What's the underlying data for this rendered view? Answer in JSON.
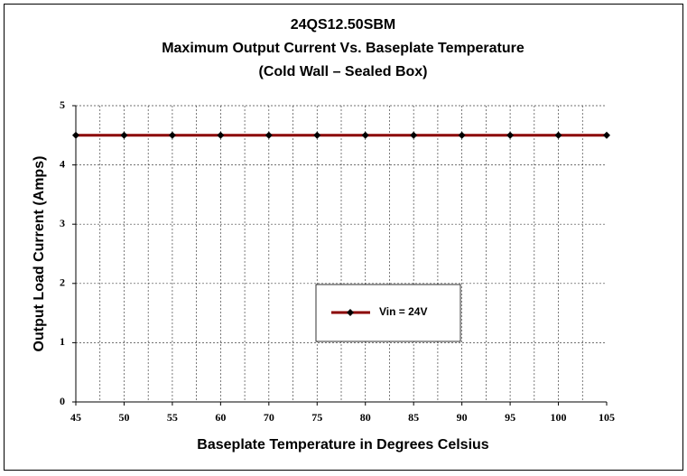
{
  "chart_data": {
    "type": "line",
    "title": [
      "24QS12.50SBM",
      "Maximum Output Current Vs. Baseplate Temperature",
      "(Cold Wall – Sealed Box)"
    ],
    "x_label": "Baseplate Temperature in Degrees Celsius",
    "y_label": "Output Load Current (Amps)",
    "categories": [
      "45",
      "50",
      "55",
      "60",
      "70",
      "75",
      "80",
      "85",
      "90",
      "95",
      "100",
      "105"
    ],
    "series": [
      {
        "name": "Vin = 24V",
        "color": "#8b0000",
        "marker_color": "#000000",
        "values": [
          4.5,
          4.5,
          4.5,
          4.5,
          4.5,
          4.5,
          4.5,
          4.5,
          4.5,
          4.5,
          4.5,
          4.5
        ]
      }
    ],
    "ylim": [
      0,
      5
    ],
    "yticks": [
      0,
      1,
      2,
      3,
      4,
      5
    ],
    "grid": true,
    "legend": "center"
  }
}
